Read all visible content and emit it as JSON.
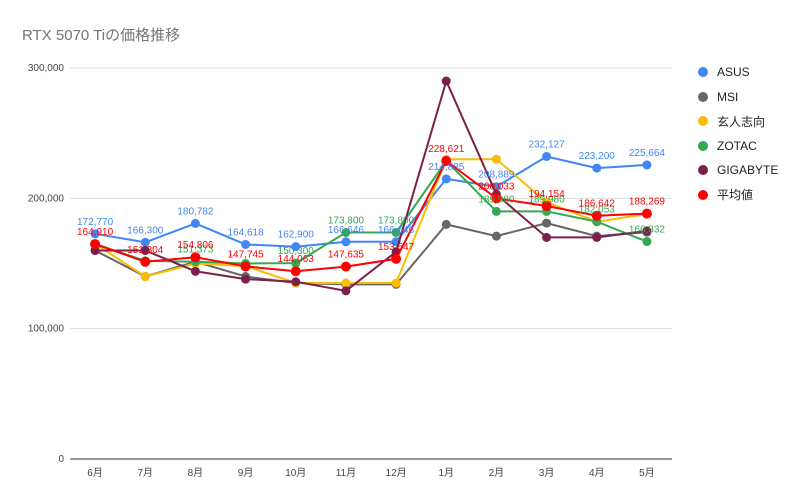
{
  "chart_data": {
    "type": "line",
    "title": "RTX 5070 Tiの価格推移",
    "categories": [
      "6月",
      "7月",
      "8月",
      "9月",
      "10月",
      "11月",
      "12月",
      "1月",
      "2月",
      "3月",
      "4月",
      "5月"
    ],
    "ylim": [
      0,
      300000
    ],
    "yticks": [
      "0",
      "100,000",
      "200,000",
      "300,000"
    ],
    "grid": true,
    "legend_position": "right",
    "series": [
      {
        "name": "ASUS",
        "color": "#4285f4",
        "values": [
          172770,
          166300,
          180782,
          164618,
          162900,
          166646,
          166646,
          214885,
          208889,
          232127,
          223200,
          225664
        ],
        "labels": [
          "172,770",
          "166,300",
          "180,782",
          "164,618",
          "162,900",
          "166,646",
          "166,646",
          "214,885",
          "208,889",
          "232,127",
          "223,200",
          "225,664"
        ]
      },
      {
        "name": "MSI",
        "color": "#666666",
        "values": [
          160000,
          140000,
          151373,
          140000,
          135000,
          134000,
          134000,
          180000,
          171000,
          181000,
          171000,
          174000
        ],
        "labels": [
          null,
          null,
          null,
          null,
          null,
          null,
          null,
          null,
          null,
          null,
          null,
          null
        ]
      },
      {
        "name": "玄人志向",
        "color": "#fbbc04",
        "values": [
          165000,
          140000,
          150000,
          148000,
          135000,
          135000,
          135000,
          230000,
          230000,
          197000,
          182053,
          188000
        ],
        "labels": [
          null,
          null,
          null,
          null,
          null,
          null,
          null,
          null,
          null,
          null,
          null,
          null
        ]
      },
      {
        "name": "ZOTAC",
        "color": "#34a853",
        "values": [
          165000,
          152000,
          151373,
          150000,
          150300,
          173800,
          173800,
          228621,
          189980,
          189980,
          182053,
          166832
        ],
        "labels": [
          null,
          null,
          "151,373",
          null,
          "150,300",
          "173,800",
          "173,800",
          null,
          "189,980",
          "189,980",
          "182,053",
          "166,832"
        ]
      },
      {
        "name": "GIGABYTE",
        "color": "#7b1f4b",
        "values": [
          160000,
          160000,
          144000,
          138000,
          136000,
          129000,
          159000,
          290000,
          203000,
          170000,
          170000,
          175000
        ],
        "labels": [
          null,
          null,
          null,
          null,
          null,
          null,
          null,
          null,
          null,
          null,
          null,
          null
        ]
      },
      {
        "name": "平均値",
        "color": "#ff0000",
        "values": [
          164910,
          151304,
          154806,
          147745,
          144063,
          147635,
          153547,
          228621,
          200033,
          194154,
          186642,
          188269
        ],
        "labels": [
          "164,910",
          "151,304",
          "154,806",
          "147,745",
          "144,063",
          "147,635",
          "153,547",
          "228,621",
          "200,033",
          "194,154",
          "186,642",
          "188,269"
        ]
      }
    ]
  }
}
